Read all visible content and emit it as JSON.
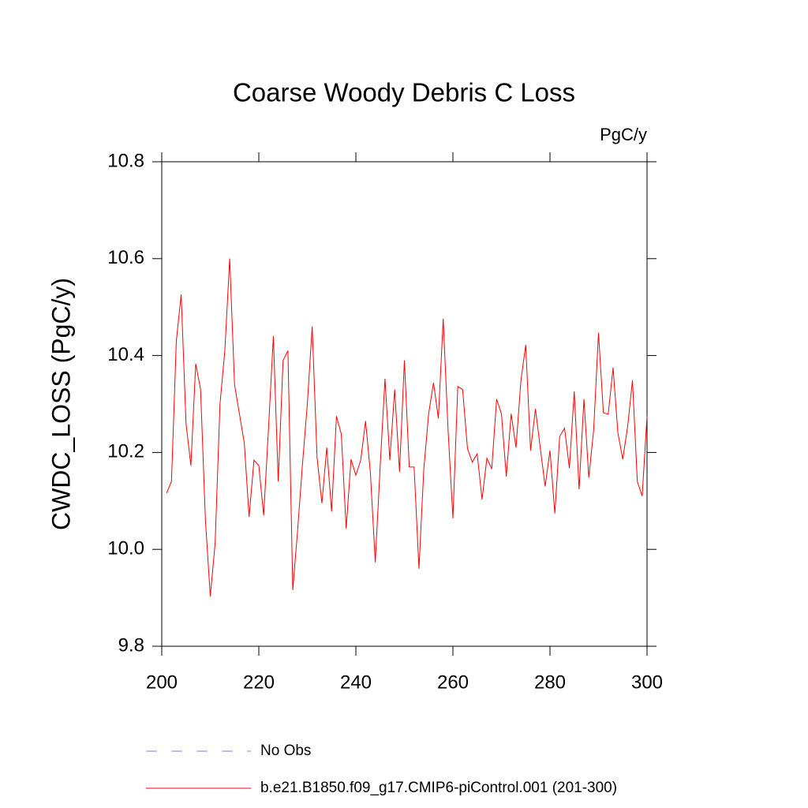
{
  "chart_data": {
    "type": "line",
    "title": "Coarse Woody Debris C Loss",
    "units": "PgC/y",
    "ylabel": "CWDC_LOSS  (PgC/y)",
    "x": [
      201,
      202,
      203,
      204,
      205,
      206,
      207,
      208,
      209,
      210,
      211,
      212,
      213,
      214,
      215,
      216,
      217,
      218,
      219,
      220,
      221,
      222,
      223,
      224,
      225,
      226,
      227,
      228,
      229,
      230,
      231,
      232,
      233,
      234,
      235,
      236,
      237,
      238,
      239,
      240,
      241,
      242,
      243,
      244,
      245,
      246,
      247,
      248,
      249,
      250,
      251,
      252,
      253,
      254,
      255,
      256,
      257,
      258,
      259,
      260,
      261,
      262,
      263,
      264,
      265,
      266,
      267,
      268,
      269,
      270,
      271,
      272,
      273,
      274,
      275,
      276,
      277,
      278,
      279,
      280,
      281,
      282,
      283,
      284,
      285,
      286,
      287,
      288,
      289,
      290,
      291,
      292,
      293,
      294,
      295,
      296,
      297,
      298,
      299,
      300
    ],
    "series": [
      {
        "name": "No Obs",
        "color": "#8080ff",
        "dashed": true
      },
      {
        "name": "b.e21.B1850.f09_g17.CMIP6-piControl.001 (201-300)",
        "color": "#ff0000",
        "values": [
          10.116,
          10.14,
          10.43,
          10.526,
          10.26,
          10.173,
          10.383,
          10.33,
          10.06,
          9.903,
          10.013,
          10.3,
          10.41,
          10.6,
          10.34,
          10.28,
          10.22,
          10.067,
          10.184,
          10.173,
          10.07,
          10.25,
          10.44,
          10.14,
          10.39,
          10.41,
          9.916,
          10.04,
          10.176,
          10.3,
          10.46,
          10.19,
          10.095,
          10.21,
          10.078,
          10.275,
          10.238,
          10.043,
          10.186,
          10.153,
          10.184,
          10.265,
          10.157,
          9.973,
          10.17,
          10.352,
          10.184,
          10.33,
          10.16,
          10.39,
          10.17,
          10.17,
          9.96,
          10.166,
          10.28,
          10.344,
          10.27,
          10.476,
          10.246,
          10.064,
          10.336,
          10.33,
          10.208,
          10.18,
          10.197,
          10.103,
          10.188,
          10.166,
          10.31,
          10.28,
          10.15,
          10.28,
          10.21,
          10.347,
          10.422,
          10.204,
          10.29,
          10.21,
          10.13,
          10.204,
          10.074,
          10.233,
          10.25,
          10.168,
          10.326,
          10.124,
          10.31,
          10.148,
          10.246,
          10.447,
          10.282,
          10.279,
          10.375,
          10.24,
          10.186,
          10.253,
          10.349,
          10.14,
          10.11,
          10.275
        ]
      }
    ],
    "xlim": [
      200,
      300
    ],
    "xticks": [
      200,
      220,
      240,
      260,
      280,
      300
    ],
    "ylim": [
      9.8,
      10.8
    ],
    "yticks": [
      9.8,
      {
        "value": 10,
        "label": "10.0"
      },
      10.2,
      10.4,
      10.6,
      10.8
    ]
  }
}
